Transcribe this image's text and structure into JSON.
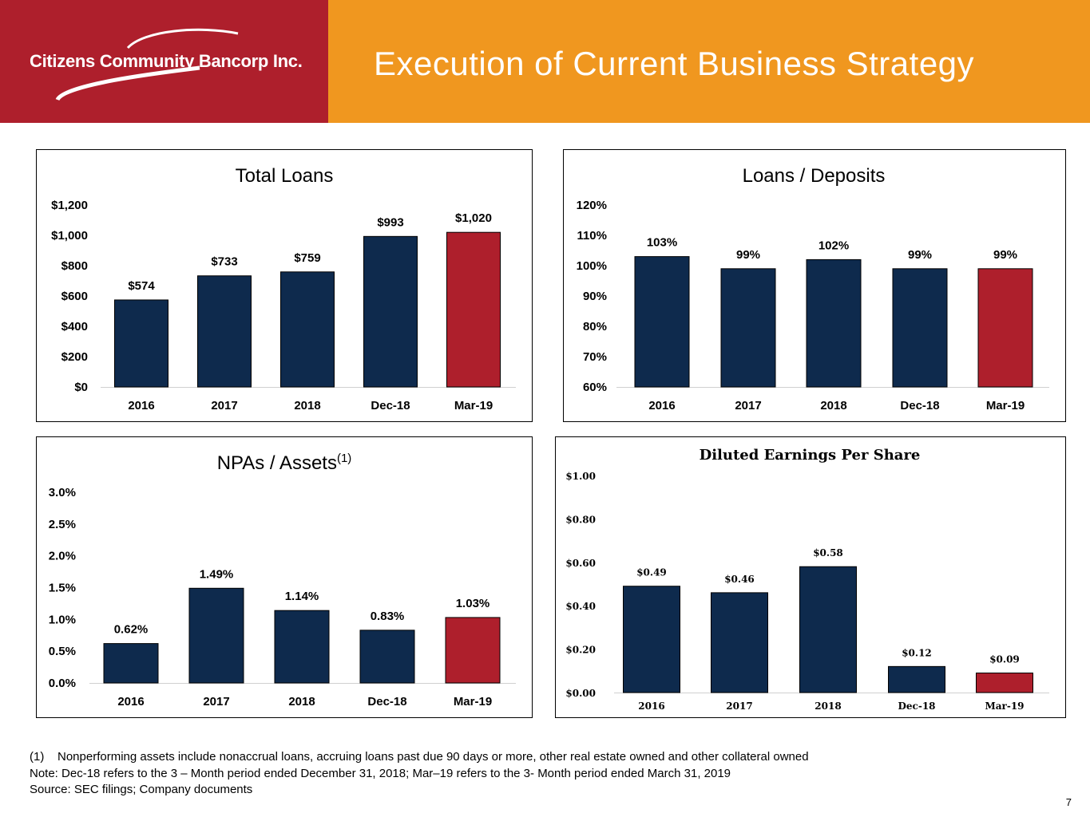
{
  "header": {
    "company": "Citizens Community Bancorp Inc.",
    "title": "Execution of Current Business Strategy"
  },
  "colors": {
    "navy": "#0e2a4d",
    "red": "#ae1f2c",
    "orange": "#f0971f"
  },
  "chart_data": [
    {
      "id": "loans",
      "type": "bar",
      "title": "Total Loans",
      "categories": [
        "2016",
        "2017",
        "2018",
        "Dec-18",
        "Mar-19"
      ],
      "values": [
        574,
        733,
        759,
        993,
        1020
      ],
      "labels": [
        "$574",
        "$733",
        "$759",
        "$993",
        "$1,020"
      ],
      "yticks": [
        "$0",
        "$200",
        "$400",
        "$600",
        "$800",
        "$1,000",
        "$1,200"
      ],
      "ylim": [
        0,
        1200
      ],
      "highlight_last": true
    },
    {
      "id": "ltd",
      "type": "bar",
      "title": "Loans / Deposits",
      "categories": [
        "2016",
        "2017",
        "2018",
        "Dec-18",
        "Mar-19"
      ],
      "values": [
        103,
        99,
        102,
        99,
        99
      ],
      "labels": [
        "103%",
        "99%",
        "102%",
        "99%",
        "99%"
      ],
      "yticks": [
        "60%",
        "70%",
        "80%",
        "90%",
        "100%",
        "110%",
        "120%"
      ],
      "ylim": [
        60,
        120
      ],
      "highlight_last": true
    },
    {
      "id": "npa",
      "type": "bar",
      "title": "NPAs / Assets",
      "title_sup": "(1)",
      "categories": [
        "2016",
        "2017",
        "2018",
        "Dec-18",
        "Mar-19"
      ],
      "values": [
        0.62,
        1.49,
        1.14,
        0.83,
        1.03
      ],
      "labels": [
        "0.62%",
        "1.49%",
        "1.14%",
        "0.83%",
        "1.03%"
      ],
      "yticks": [
        "0.0%",
        "0.5%",
        "1.0%",
        "1.5%",
        "2.0%",
        "2.5%",
        "3.0%"
      ],
      "ylim": [
        0,
        3
      ],
      "highlight_last": true
    },
    {
      "id": "eps",
      "type": "bar",
      "title": "Diluted Earnings Per Share",
      "categories": [
        "2016",
        "2017",
        "2018",
        "Dec-18",
        "Mar-19"
      ],
      "values": [
        0.49,
        0.46,
        0.58,
        0.12,
        0.09
      ],
      "labels": [
        "$0.49",
        "$0.46",
        "$0.58",
        "$0.12",
        "$0.09"
      ],
      "yticks": [
        "$0.00",
        "$0.20",
        "$0.40",
        "$0.60",
        "$0.80",
        "$1.00"
      ],
      "ylim": [
        0,
        1
      ],
      "highlight_last": true
    }
  ],
  "footnotes": [
    "(1)    Nonperforming assets include nonaccrual loans, accruing loans past due 90 days or more, other real estate owned and other collateral owned",
    "Note: Dec-18 refers to the 3 – Month period ended December 31, 2018; Mar–19 refers to the 3- Month period ended March 31, 2019",
    "Source: SEC filings; Company documents"
  ],
  "page_number": "7"
}
